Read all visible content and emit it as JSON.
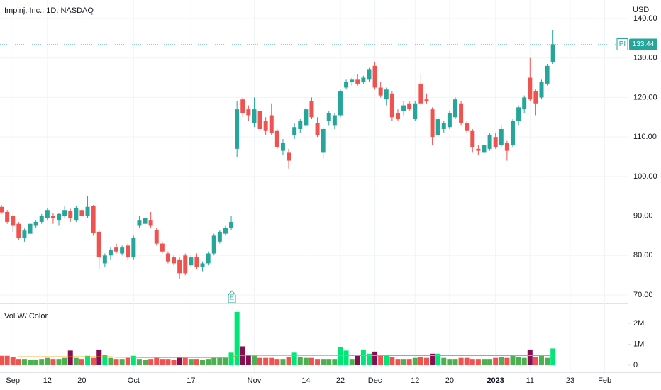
{
  "chart_data": {
    "type": "candlestick",
    "title": "Impinj, Inc., 1D, NASDAQ",
    "currency": "USD",
    "symbol": "PI",
    "earnings_label": "E",
    "up_color": "#26a69a",
    "down_color": "#ef5350",
    "grid": true,
    "open": [
      92.3,
      91,
      90,
      88,
      84.5,
      85.5,
      87.5,
      88.5,
      89.5,
      90,
      89,
      90,
      91.3,
      89,
      91.5,
      90,
      92.5,
      86,
      78,
      80,
      82,
      80.5,
      82.5,
      79.5,
      87.5,
      88,
      89,
      86.5,
      83,
      80.5,
      79.5,
      79,
      80,
      77.5,
      79.5,
      77,
      78,
      80.5,
      83.5,
      85.5,
      87,
      107,
      119.5,
      117,
      113.5,
      116.5,
      114,
      115.5,
      111.5,
      106.5,
      106,
      110.5,
      112,
      113,
      119,
      113.5,
      106,
      114,
      113,
      115.5,
      122.5,
      124,
      124.5,
      124,
      124.5,
      128,
      122.5,
      119.5,
      121,
      116,
      116.5,
      118.5,
      114.5,
      123.5,
      119.5,
      117,
      110.5,
      112,
      112.5,
      115,
      118.5,
      113.5,
      111.5,
      107,
      106,
      107,
      110,
      108,
      108.5,
      108,
      114,
      117,
      125,
      121.5,
      120,
      123.5,
      129
    ],
    "high": [
      92.8,
      91.5,
      90.3,
      88.5,
      86.8,
      88.3,
      89,
      90.5,
      92,
      90.8,
      90.8,
      92.5,
      91.8,
      92.5,
      92,
      95,
      92.8,
      86.5,
      80.5,
      82,
      83,
      82.5,
      83,
      85,
      90,
      89.8,
      91,
      87,
      83.5,
      81,
      80,
      79.5,
      80.5,
      80,
      80.5,
      78.5,
      81,
      85.5,
      86.5,
      87.5,
      90,
      119,
      120,
      118,
      120,
      118.5,
      115,
      118.5,
      112,
      109.5,
      107,
      113.5,
      114.5,
      117.5,
      120,
      115,
      112.5,
      116.5,
      116,
      122,
      124.5,
      125,
      126,
      125.5,
      127.5,
      129,
      124,
      122.5,
      121.5,
      117,
      119,
      119,
      119,
      126,
      121,
      117.5,
      115,
      114,
      116.5,
      120,
      119,
      114,
      112,
      108,
      108.5,
      111,
      111,
      113,
      109,
      114.5,
      118,
      120.5,
      130,
      122,
      124.5,
      128.5,
      137
    ],
    "low": [
      90.5,
      88,
      86,
      84,
      83.5,
      85,
      87,
      88,
      89,
      88,
      87.5,
      89.5,
      88.5,
      88.5,
      89.5,
      89.5,
      85,
      76.5,
      77,
      79,
      80.5,
      80,
      79,
      79,
      87,
      87,
      87,
      82.5,
      80.5,
      78,
      77.5,
      74,
      75,
      77,
      76.5,
      76,
      77.5,
      80,
      83,
      85,
      86.5,
      105,
      115,
      114,
      112.5,
      111.5,
      110.5,
      110.5,
      107,
      105.5,
      102,
      109.5,
      111,
      112.5,
      114.5,
      110,
      104.5,
      113,
      112,
      115,
      122,
      123,
      123,
      123.5,
      124,
      122,
      120,
      118,
      114,
      114,
      115.5,
      116.5,
      114,
      118,
      118.5,
      108,
      110,
      111,
      112,
      114.5,
      113,
      111,
      106,
      105.5,
      105.5,
      106.5,
      107,
      107.5,
      104,
      107.5,
      113,
      116,
      119,
      115.5,
      119.5,
      123,
      128.5
    ],
    "close": [
      90.9,
      88.5,
      87.5,
      84.5,
      86.3,
      88,
      88.5,
      90,
      91.5,
      89.5,
      90.5,
      91.5,
      89.5,
      92,
      90,
      92.3,
      85.7,
      79.5,
      80,
      81.5,
      81,
      82,
      79.5,
      84.5,
      89,
      89.5,
      87.5,
      83,
      81,
      78.5,
      78,
      75.5,
      75.5,
      79.5,
      77,
      78,
      80.5,
      85,
      86,
      87,
      88.5,
      117,
      116,
      115.5,
      117,
      112,
      111.5,
      111,
      107.5,
      108.5,
      104,
      112.5,
      114,
      117,
      115,
      110.5,
      112,
      116,
      115.5,
      121.5,
      124,
      124.5,
      123.5,
      125,
      127,
      122.5,
      120.5,
      122,
      115,
      114.5,
      118,
      117,
      118.5,
      118.5,
      119,
      110,
      114.5,
      113.5,
      116,
      119.5,
      113.5,
      111.5,
      107.5,
      106.5,
      108,
      110.5,
      107.5,
      112,
      106.5,
      114,
      117.5,
      120,
      119.5,
      118.5,
      124,
      128,
      133.44
    ],
    "ylim": [
      67.85,
      144.66
    ],
    "yticks": [
      {
        "value": 70,
        "label": "70.00"
      },
      {
        "value": 80,
        "label": "80.00"
      },
      {
        "value": 90,
        "label": "90.00"
      },
      {
        "value": 100,
        "label": "100.00"
      },
      {
        "value": 110,
        "label": "110.00"
      },
      {
        "value": 120,
        "label": "120.00"
      },
      {
        "value": 130,
        "label": "130.00"
      },
      {
        "value": 140,
        "label": "140.00"
      }
    ],
    "xlim": [
      -0.25,
      109
    ],
    "xticks": [
      {
        "value": 2,
        "label": "Sep"
      },
      {
        "value": 8,
        "label": "12"
      },
      {
        "value": 14,
        "label": "20"
      },
      {
        "value": 23,
        "label": "Oct"
      },
      {
        "value": 33,
        "label": "17"
      },
      {
        "value": 44,
        "label": "Nov"
      },
      {
        "value": 53,
        "label": "14"
      },
      {
        "value": 59,
        "label": "22"
      },
      {
        "value": 65,
        "label": "Dec"
      },
      {
        "value": 72,
        "label": "12"
      },
      {
        "value": 78,
        "label": "20"
      },
      {
        "value": 86,
        "label": "2023"
      },
      {
        "value": 92,
        "label": "11"
      },
      {
        "value": 99,
        "label": "23"
      },
      {
        "value": 105,
        "label": "Feb"
      }
    ],
    "volume": {
      "type": "bar",
      "title": "Vol W/ Color",
      "values": [
        0.45,
        0.45,
        0.4,
        0.3,
        0.3,
        0.25,
        0.25,
        0.3,
        0.35,
        0.3,
        0.3,
        0.35,
        0.7,
        0.35,
        0.3,
        0.45,
        0.35,
        0.75,
        0.5,
        0.35,
        0.3,
        0.3,
        0.35,
        0.45,
        0.3,
        0.25,
        0.3,
        0.35,
        0.3,
        0.3,
        0.25,
        0.4,
        0.35,
        0.3,
        0.3,
        0.25,
        0.3,
        0.35,
        0.35,
        0.35,
        0.6,
        2.55,
        0.9,
        0.5,
        0.45,
        0.35,
        0.35,
        0.35,
        0.3,
        0.3,
        0.4,
        0.6,
        0.4,
        0.35,
        0.35,
        0.3,
        0.3,
        0.3,
        0.3,
        0.85,
        0.7,
        0.3,
        0.5,
        0.75,
        0.55,
        0.65,
        0.45,
        0.5,
        0.4,
        0.3,
        0.3,
        0.3,
        0.35,
        0.4,
        0.35,
        0.55,
        0.55,
        0.35,
        0.3,
        0.3,
        0.35,
        0.35,
        0.3,
        0.3,
        0.3,
        0.3,
        0.35,
        0.4,
        0.35,
        0.45,
        0.4,
        0.35,
        0.75,
        0.4,
        0.45,
        0.35,
        0.8
      ],
      "ma": [
        null,
        null,
        null,
        0.4,
        0.4,
        0.4,
        0.4,
        0.4,
        0.4,
        0.4,
        0.4,
        0.4,
        0.4,
        0.4,
        0.4,
        0.4,
        0.4,
        0.4,
        0.4,
        0.4,
        0.38,
        0.38,
        0.38,
        0.38,
        0.37,
        0.37,
        0.37,
        0.37,
        0.37,
        0.37,
        0.37,
        0.37,
        0.37,
        0.37,
        0.37,
        0.37,
        0.37,
        0.37,
        0.37,
        0.37,
        0.38,
        0.47,
        0.47,
        0.47,
        0.47,
        0.47,
        0.47,
        0.47,
        0.47,
        0.47,
        0.47,
        0.47,
        0.47,
        0.47,
        0.47,
        0.47,
        0.47,
        0.47,
        0.47,
        0.47,
        0.47,
        0.46,
        0.46,
        0.46,
        0.46,
        0.46,
        0.46,
        0.46,
        0.46,
        0.46,
        0.46,
        0.46,
        0.46,
        0.46,
        0.46,
        0.46,
        0.46,
        0.46,
        0.46,
        0.46,
        0.46,
        0.46,
        0.46,
        0.46,
        0.46,
        0.46,
        0.46,
        0.46,
        0.46,
        0.46,
        0.46,
        0.46,
        0.46,
        0.46,
        0.46,
        0.46,
        0.46
      ],
      "ma_color": "#ff9800",
      "colors": {
        "up_high": "#00e676",
        "up_low": "#4caf50",
        "down_high": "#880e4f",
        "down_low": "#ef5350"
      },
      "ylim": [
        -0.34,
        2.92
      ],
      "yticks": [
        0,
        {
          "value": 1,
          "label": "1M"
        },
        {
          "value": 2,
          "label": "2M"
        }
      ]
    }
  }
}
